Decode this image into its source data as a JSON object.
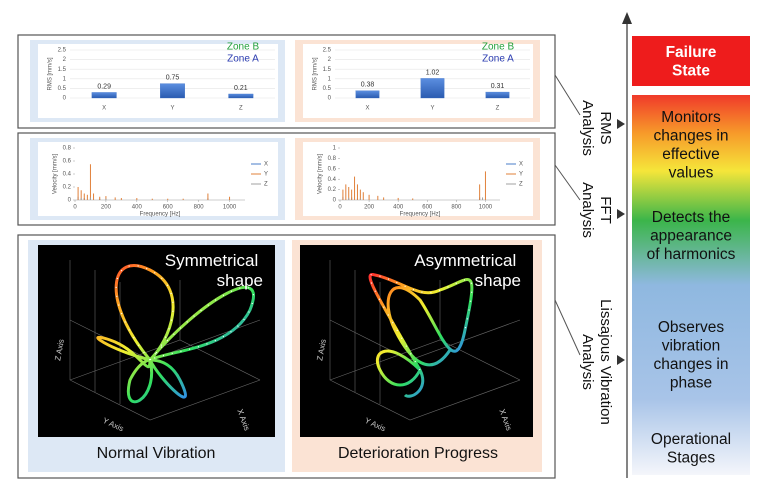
{
  "chart_data": [
    {
      "type": "bar",
      "ylabel": "RMS [mm/s]",
      "categories": [
        "X",
        "Y",
        "Z"
      ],
      "values": [
        0.29,
        0.75,
        0.21
      ],
      "color": "#3a6fc4",
      "ylim": [
        0,
        2.5
      ],
      "yticks": [
        0,
        0.5,
        1,
        1.5,
        2,
        2.5
      ],
      "zone_labels": [
        {
          "text": "Zone B",
          "color": "#22a03a"
        },
        {
          "text": "Zone A",
          "color": "#2a3bb0"
        }
      ]
    },
    {
      "type": "bar",
      "ylabel": "RMS [mm/s]",
      "categories": [
        "X",
        "Y",
        "Z"
      ],
      "values": [
        0.38,
        1.02,
        0.31
      ],
      "color": "#3a6fc4",
      "ylim": [
        0,
        2.5
      ],
      "yticks": [
        0,
        0.5,
        1,
        1.5,
        2,
        2.5
      ],
      "zone_labels": [
        {
          "text": "Zone B",
          "color": "#22a03a"
        },
        {
          "text": "Zone A",
          "color": "#2a3bb0"
        }
      ]
    },
    {
      "type": "line",
      "xlabel": "Frequency [Hz]",
      "ylabel": "Velocity [mm/s]",
      "xlim": [
        0,
        1100
      ],
      "xticks": [
        0,
        200,
        400,
        600,
        800,
        1000
      ],
      "ylim": [
        0,
        0.8
      ],
      "yticks": [
        0,
        0.2,
        0.4,
        0.6,
        0.8
      ],
      "series": [
        {
          "name": "X",
          "color": "#4a7cc8",
          "x": [
            20,
            60,
            100,
            160,
            860
          ],
          "values": [
            0.05,
            0.03,
            0.04,
            0.02,
            0.03
          ]
        },
        {
          "name": "Y",
          "color": "#e0803a",
          "x": [
            20,
            40,
            60,
            80,
            100,
            120,
            160,
            200,
            260,
            300,
            400,
            500,
            600,
            700,
            860,
            1000
          ],
          "values": [
            0.2,
            0.15,
            0.1,
            0.08,
            0.55,
            0.1,
            0.05,
            0.06,
            0.04,
            0.03,
            0.03,
            0.02,
            0.02,
            0.02,
            0.1,
            0.05
          ]
        },
        {
          "name": "Z",
          "color": "#a0a0a0",
          "x": [
            40,
            100,
            200
          ],
          "values": [
            0.03,
            0.04,
            0.02
          ]
        }
      ]
    },
    {
      "type": "line",
      "xlabel": "Frequency [Hz]",
      "ylabel": "Velocity [mm/s]",
      "xlim": [
        0,
        1100
      ],
      "xticks": [
        0,
        200,
        400,
        600,
        800,
        1000
      ],
      "ylim": [
        0,
        1
      ],
      "yticks": [
        0,
        0.2,
        0.4,
        0.6,
        0.8,
        1
      ],
      "series": [
        {
          "name": "X",
          "color": "#4a7cc8",
          "x": [
            20,
            80,
            120,
            960
          ],
          "values": [
            0.06,
            0.05,
            0.04,
            0.05
          ]
        },
        {
          "name": "Y",
          "color": "#e0803a",
          "x": [
            20,
            40,
            60,
            80,
            100,
            120,
            140,
            160,
            200,
            260,
            300,
            400,
            500,
            960,
            1000
          ],
          "values": [
            0.2,
            0.3,
            0.25,
            0.2,
            0.45,
            0.3,
            0.2,
            0.15,
            0.1,
            0.08,
            0.05,
            0.04,
            0.03,
            0.3,
            0.55
          ]
        },
        {
          "name": "Z",
          "color": "#a0a0a0",
          "x": [
            60,
            140,
            980
          ],
          "values": [
            0.04,
            0.03,
            0.05
          ]
        }
      ]
    }
  ],
  "lissajous": [
    {
      "shape": "Symmetrical shape",
      "caption": "Normal Vibration",
      "z_axis": "Z Axis",
      "y_axis": "Y Axis",
      "x_axis": "X Axis"
    },
    {
      "shape": "Asymmetrical shape",
      "caption": "Deterioration Progress",
      "z_axis": "Z Axis",
      "y_axis": "Y Axis",
      "x_axis": "X Axis"
    }
  ],
  "side_labels": {
    "rms": [
      "RMS",
      "Analysis"
    ],
    "fft": [
      "FFT",
      "Analysis"
    ],
    "lissajous": [
      "Lissajous Vibration",
      "Analysis"
    ]
  },
  "stages": {
    "failure": [
      "Failure",
      "State"
    ],
    "rms": [
      "Monitors",
      "changes in",
      "effective",
      "values"
    ],
    "fft": [
      "Detects the",
      "appearance",
      "of harmonics"
    ],
    "lissajous": [
      "Observes",
      "vibration",
      "changes in",
      "phase"
    ],
    "operational": [
      "Operational",
      "Stages"
    ]
  }
}
